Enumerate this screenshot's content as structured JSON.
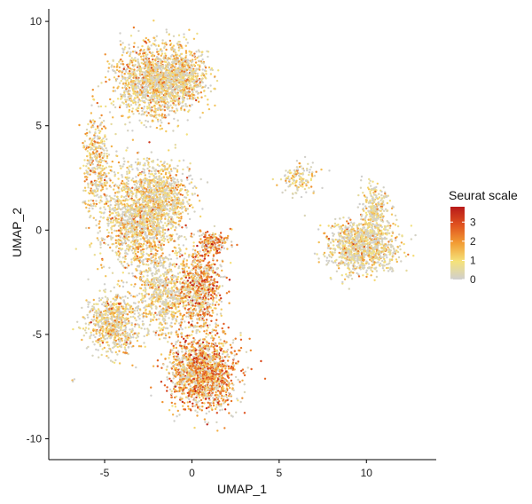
{
  "chart_data": {
    "type": "scatter",
    "title": "",
    "xlabel": "UMAP_1",
    "ylabel": "UMAP_2",
    "xlim": [
      -8.2,
      14
    ],
    "ylim": [
      -11,
      10.6
    ],
    "x_ticks": [
      -5,
      0,
      5,
      10
    ],
    "y_ticks": [
      -10,
      -5,
      0,
      5,
      10
    ],
    "x_tick_labels": [
      "-5",
      "0",
      "5",
      "10"
    ],
    "y_tick_labels": [
      "-10",
      "-5",
      "0",
      "5",
      "10"
    ],
    "grid": false,
    "legend": {
      "title": "Seurat scale",
      "placement": "right",
      "range": [
        0,
        3.8
      ],
      "ticks": [
        0,
        1,
        2,
        3
      ],
      "tick_labels": [
        "0",
        "1",
        "2",
        "3"
      ],
      "colors": [
        "#cfcfcf",
        "#f5e27a",
        "#f29d34",
        "#e0521e",
        "#b81a1a"
      ]
    },
    "clusters": [
      {
        "name": "top",
        "cx": -2.2,
        "cy": 7.2,
        "sx": 1.5,
        "sy": 1.2,
        "n": 1400,
        "mean_value": 1.2
      },
      {
        "name": "top-right-lobe",
        "cx": -0.4,
        "cy": 7.3,
        "sx": 0.9,
        "sy": 0.9,
        "n": 500,
        "mean_value": 1.0
      },
      {
        "name": "arc",
        "cx": -5.5,
        "cy": 3.2,
        "sx": 0.5,
        "sy": 1.6,
        "n": 350,
        "mean_value": 1.3
      },
      {
        "name": "middle",
        "cx": -2.9,
        "cy": 0.5,
        "sx": 1.5,
        "sy": 1.6,
        "n": 1600,
        "mean_value": 1.1
      },
      {
        "name": "middle-right",
        "cx": -1.6,
        "cy": 1.8,
        "sx": 1.0,
        "sy": 1.0,
        "n": 500,
        "mean_value": 1.0
      },
      {
        "name": "left-lower",
        "cx": -4.5,
        "cy": -4.5,
        "sx": 1.0,
        "sy": 0.9,
        "n": 700,
        "mean_value": 1.0
      },
      {
        "name": "center-lower",
        "cx": -1.6,
        "cy": -3.2,
        "sx": 1.1,
        "sy": 1.3,
        "n": 700,
        "mean_value": 0.9
      },
      {
        "name": "bridge",
        "cx": 0.5,
        "cy": -2.8,
        "sx": 0.8,
        "sy": 1.3,
        "n": 700,
        "mean_value": 2.0
      },
      {
        "name": "bottom",
        "cx": 0.6,
        "cy": -6.8,
        "sx": 1.3,
        "sy": 1.2,
        "n": 1500,
        "mean_value": 2.1
      },
      {
        "name": "small-top-right",
        "cx": 1.2,
        "cy": -0.6,
        "sx": 0.6,
        "sy": 0.4,
        "n": 180,
        "mean_value": 2.2
      },
      {
        "name": "right-main",
        "cx": 9.8,
        "cy": -0.8,
        "sx": 1.3,
        "sy": 0.8,
        "n": 1100,
        "mean_value": 0.9
      },
      {
        "name": "right-upper",
        "cx": 10.5,
        "cy": 1.0,
        "sx": 0.5,
        "sy": 0.8,
        "n": 250,
        "mean_value": 0.7
      },
      {
        "name": "right-streak",
        "cx": 6.2,
        "cy": 2.5,
        "sx": 0.7,
        "sy": 0.5,
        "n": 130,
        "mean_value": 1.1
      },
      {
        "name": "outlier",
        "cx": -6.8,
        "cy": -7.2,
        "sx": 0.1,
        "sy": 0.05,
        "n": 3,
        "mean_value": 1.0
      }
    ]
  }
}
